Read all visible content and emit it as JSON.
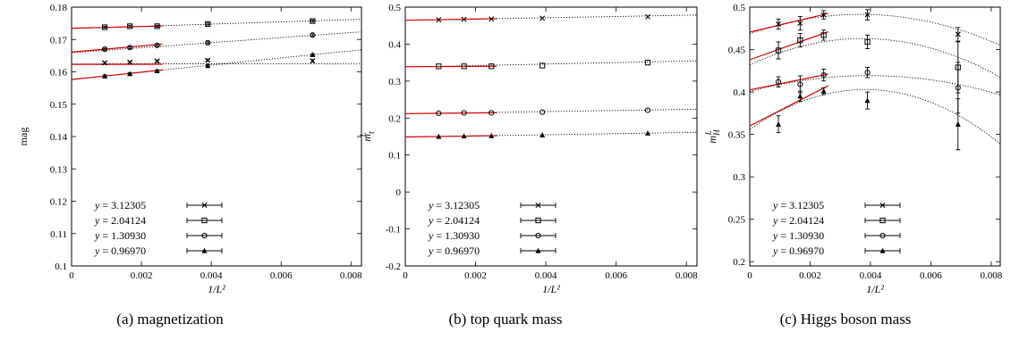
{
  "chart_data": [
    {
      "type": "scatter",
      "panel_caption": "(a) magnetization",
      "ylabel": "mag",
      "xlabel": "1/L²",
      "xlim": [
        0,
        0.0083
      ],
      "ylim": [
        0.1,
        0.18
      ],
      "xticks": [
        0,
        0.002,
        0.004,
        0.006,
        0.008
      ],
      "xtick_labels": [
        "0",
        "0.002",
        "0.004",
        "0.006",
        "0.008"
      ],
      "yticks": [
        0.1,
        0.11,
        0.12,
        0.13,
        0.14,
        0.15,
        0.16,
        0.17,
        0.18
      ],
      "ytick_labels": [
        "0.1",
        "0.11",
        "0.12",
        "0.13",
        "0.14",
        "0.15",
        "0.16",
        "0.17",
        "0.18"
      ],
      "legend_position": "bottom-left",
      "series": [
        {
          "name": "y = 3.12305",
          "marker": "x",
          "x": [
            0.00095,
            0.00167,
            0.00245,
            0.0039,
            0.0069
          ],
          "y": [
            0.1628,
            0.163,
            0.1633,
            0.1636,
            0.1634
          ],
          "yerr": [
            0.0003,
            0.0003,
            0.0003,
            0.0003,
            0.0004
          ],
          "fit_black": [
            0.16247,
            0.0112,
            -1.9
          ],
          "fit_red": [
            0.1623,
            0.0145
          ],
          "red_xrange": [
            0,
            0.0026
          ]
        },
        {
          "name": "y = 2.04124",
          "marker": "square",
          "x": [
            0.00095,
            0.00167,
            0.00245,
            0.0039,
            0.0069
          ],
          "y": [
            0.1738,
            0.1741,
            0.1741,
            0.1748,
            0.1757
          ],
          "yerr": [
            0.0003,
            0.0003,
            0.0003,
            0.0003,
            0.0003
          ],
          "fit_black": [
            0.17335,
            0.35,
            0
          ],
          "fit_red": [
            0.1735,
            0.25
          ],
          "red_xrange": [
            0,
            0.0026
          ]
        },
        {
          "name": "y = 1.30930",
          "marker": "circle",
          "x": [
            0.00095,
            0.00167,
            0.00245,
            0.0039,
            0.0069
          ],
          "y": [
            0.167,
            0.1675,
            0.1682,
            0.169,
            0.1714
          ],
          "yerr": [
            0.0003,
            0.0003,
            0.0003,
            0.0003,
            0.0003
          ],
          "fit_black": [
            0.1659,
            0.78,
            0
          ],
          "fit_red": [
            0.1661,
            0.95
          ],
          "red_xrange": [
            0,
            0.0026
          ]
        },
        {
          "name": "y = 0.96970",
          "marker": "triangle",
          "x": [
            0.00095,
            0.00167,
            0.00245,
            0.0039,
            0.0069
          ],
          "y": [
            0.1587,
            0.1594,
            0.1603,
            0.1619,
            0.1653
          ],
          "yerr": [
            0.0003,
            0.0003,
            0.0003,
            0.0003,
            0.0003
          ],
          "fit_black": [
            0.1577,
            1.1,
            0
          ],
          "fit_red": [
            0.1576,
            1.15
          ],
          "red_xrange": [
            0,
            0.0026
          ]
        }
      ]
    },
    {
      "type": "scatter",
      "panel_caption": "(b) top quark mass",
      "ylabel": "m",
      "ylabel_sup": "L",
      "ylabel_sub": "t",
      "xlabel": "1/L²",
      "xlim": [
        0,
        0.0083
      ],
      "ylim": [
        -0.2,
        0.5
      ],
      "xticks": [
        0,
        0.002,
        0.004,
        0.006,
        0.008
      ],
      "xtick_labels": [
        "0",
        "0.002",
        "0.004",
        "0.006",
        "0.008"
      ],
      "yticks": [
        -0.2,
        -0.1,
        0,
        0.1,
        0.2,
        0.3,
        0.4,
        0.5
      ],
      "ytick_labels": [
        "-0.2",
        "-0.1",
        "0",
        "0.1",
        "0.2",
        "0.3",
        "0.4",
        "0.5"
      ],
      "legend_position": "bottom-left",
      "series": [
        {
          "name": "y = 3.12305",
          "marker": "x",
          "x": [
            0.00095,
            0.00167,
            0.00245,
            0.0039,
            0.0069
          ],
          "y": [
            0.466,
            0.467,
            0.468,
            0.47,
            0.474
          ],
          "yerr": [
            0,
            0,
            0,
            0,
            0
          ],
          "fit_black": [
            0.4645,
            1.7,
            0
          ],
          "fit_red": [
            0.4645,
            1.7
          ],
          "red_xrange": [
            0,
            0.0026
          ]
        },
        {
          "name": "y = 2.04124",
          "marker": "square",
          "x": [
            0.00095,
            0.00167,
            0.00245,
            0.0039,
            0.0069
          ],
          "y": [
            0.34,
            0.34,
            0.34,
            0.342,
            0.35
          ],
          "yerr": [
            0,
            0,
            0,
            0,
            0
          ],
          "fit_black": [
            0.338,
            2.0,
            0
          ],
          "fit_red": [
            0.339,
            0.4
          ],
          "red_xrange": [
            0,
            0.0026
          ]
        },
        {
          "name": "y = 1.30930",
          "marker": "circle",
          "x": [
            0.00095,
            0.00167,
            0.00245,
            0.0039,
            0.0069
          ],
          "y": [
            0.213,
            0.214,
            0.214,
            0.216,
            0.221
          ],
          "yerr": [
            0,
            0,
            0,
            0,
            0
          ],
          "fit_black": [
            0.2115,
            1.5,
            0
          ],
          "fit_red": [
            0.212,
            0.9
          ],
          "red_xrange": [
            0,
            0.0026
          ]
        },
        {
          "name": "y = 0.96970",
          "marker": "triangle",
          "x": [
            0.00095,
            0.00167,
            0.00245,
            0.0039,
            0.0069
          ],
          "y": [
            0.15,
            0.151,
            0.152,
            0.154,
            0.159
          ],
          "yerr": [
            0,
            0,
            0,
            0,
            0
          ],
          "fit_black": [
            0.1488,
            1.5,
            0
          ],
          "fit_red": [
            0.1488,
            1.4
          ],
          "red_xrange": [
            0,
            0.0026
          ]
        }
      ]
    },
    {
      "type": "scatter",
      "panel_caption": "(c) Higgs boson mass",
      "ylabel": "m",
      "ylabel_sup": "L",
      "ylabel_sub": "H",
      "xlabel": "1/L²",
      "xlim": [
        0,
        0.0083
      ],
      "ylim": [
        0.195,
        0.5
      ],
      "xticks": [
        0,
        0.002,
        0.004,
        0.006,
        0.008
      ],
      "xtick_labels": [
        "0",
        "0.002",
        "0.004",
        "0.006",
        "0.008"
      ],
      "yticks": [
        0.2,
        0.25,
        0.3,
        0.35,
        0.4,
        0.45,
        0.5
      ],
      "ytick_labels": [
        "0.2",
        "0.25",
        "0.3",
        "0.35",
        "0.4",
        "0.45",
        "0.5"
      ],
      "legend_position": "bottom-left",
      "series": [
        {
          "name": "y = 3.12305",
          "marker": "x",
          "x": [
            0.00095,
            0.00167,
            0.00245,
            0.0039,
            0.0069
          ],
          "y": [
            0.48,
            0.481,
            0.491,
            0.491,
            0.468
          ],
          "yerr": [
            0.006,
            0.008,
            0.005,
            0.006,
            0.008
          ],
          "fit_black": [
            0.4685,
            12.5,
            -1700
          ],
          "fit_red": [
            0.4705,
            8.5
          ],
          "red_xrange": [
            0,
            0.0026
          ]
        },
        {
          "name": "y = 2.04124",
          "marker": "square",
          "x": [
            0.00095,
            0.00167,
            0.00245,
            0.0039,
            0.0069
          ],
          "y": [
            0.449,
            0.461,
            0.467,
            0.459,
            0.429
          ],
          "yerr": [
            0.01,
            0.008,
            0.006,
            0.008,
            0.03
          ],
          "fit_black": [
            0.432,
            16.5,
            -2200
          ],
          "fit_red": [
            0.438,
            12.7
          ],
          "red_xrange": [
            0,
            0.0026
          ]
        },
        {
          "name": "y = 1.30930",
          "marker": "circle",
          "x": [
            0.00095,
            0.00167,
            0.00245,
            0.0039,
            0.0069
          ],
          "y": [
            0.412,
            0.409,
            0.42,
            0.423,
            0.405
          ],
          "yerr": [
            0.006,
            0.01,
            0.007,
            0.006,
            0.03
          ],
          "fit_black": [
            0.4005,
            9.5,
            -1200
          ],
          "fit_red": [
            0.4025,
            7.2
          ],
          "red_xrange": [
            0,
            0.0026
          ]
        },
        {
          "name": "y = 0.96970",
          "marker": "triangle",
          "x": [
            0.00095,
            0.00167,
            0.00245,
            0.0039,
            0.0069
          ],
          "y": [
            0.362,
            0.395,
            0.401,
            0.39,
            0.362
          ],
          "yerr": [
            0.01,
            0.006,
            0.004,
            0.01,
            0.03
          ],
          "fit_black": [
            0.356,
            24.5,
            -3200
          ],
          "fit_red": [
            0.36,
            18.2
          ],
          "red_xrange": [
            0,
            0.0026
          ]
        }
      ]
    }
  ]
}
